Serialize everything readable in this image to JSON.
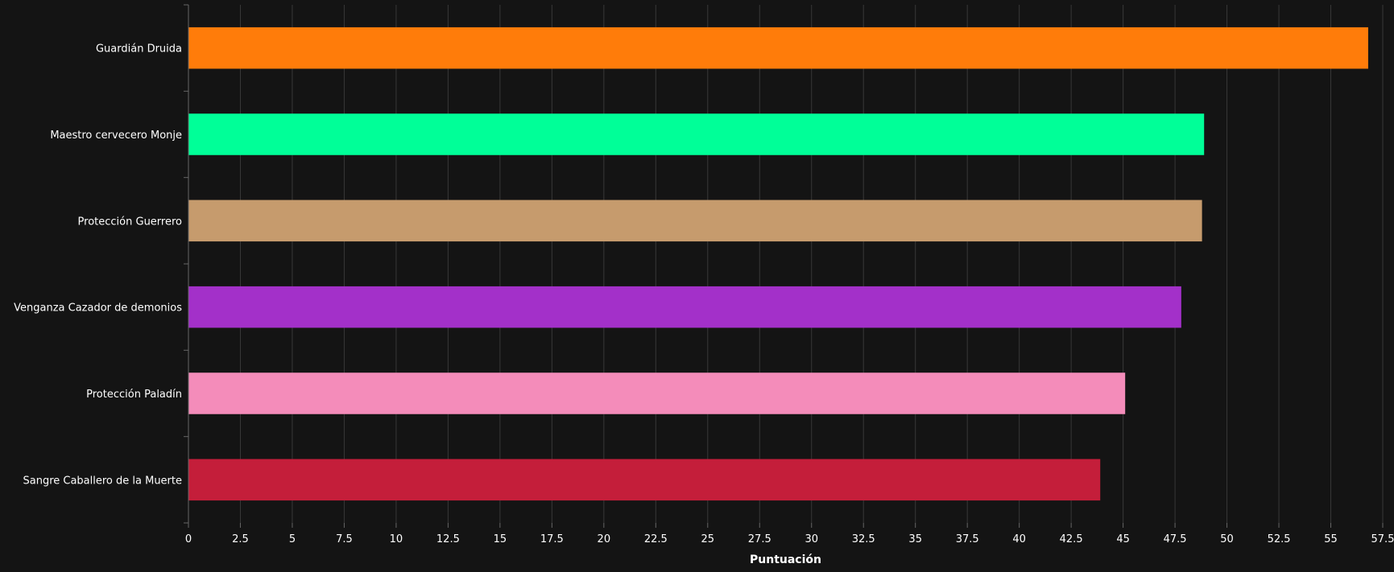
{
  "chart_data": {
    "type": "bar",
    "orientation": "horizontal",
    "categories": [
      "Guardián Druida",
      "Maestro cervecero Monje",
      "Protección Guerrero",
      "Venganza Cazador de demonios",
      "Protección Paladín",
      "Sangre Caballero de la Muerte"
    ],
    "values": [
      56.8,
      48.9,
      48.8,
      47.8,
      45.1,
      43.9
    ],
    "colors": [
      "#ff7c0a",
      "#00ff98",
      "#c69b6d",
      "#a330c9",
      "#f48cba",
      "#c41e3a"
    ],
    "xlabel": "Puntuación",
    "xlim": [
      0,
      57.5
    ],
    "xticks": [
      "0",
      "2.5",
      "5",
      "7.5",
      "10",
      "12.5",
      "15",
      "17.5",
      "20",
      "22.5",
      "25",
      "27.5",
      "30",
      "32.5",
      "35",
      "37.5",
      "40",
      "42.5",
      "45",
      "47.5",
      "50",
      "52.5",
      "55",
      "57.5"
    ],
    "grid": "vertical",
    "legend": "none"
  }
}
